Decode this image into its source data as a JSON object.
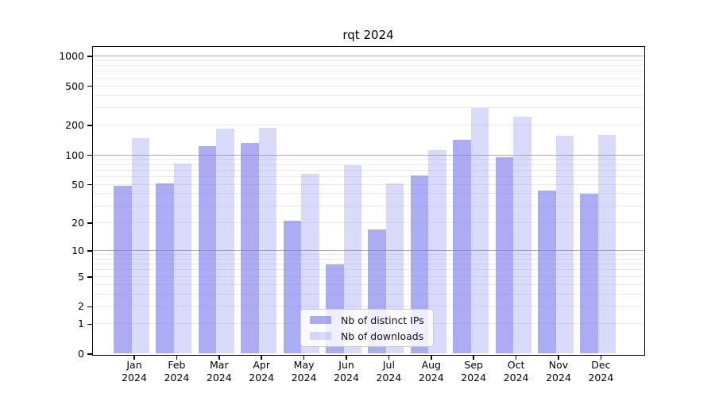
{
  "chart_data": {
    "type": "bar",
    "title": "rqt 2024",
    "xlabel": "",
    "ylabel": "",
    "y_scale": "log10(1+y)",
    "ylim": [
      0,
      1250
    ],
    "grid": true,
    "legend_position": "lower center",
    "categories": [
      "Jan",
      "Feb",
      "Mar",
      "Apr",
      "May",
      "Jun",
      "Jul",
      "Aug",
      "Sep",
      "Oct",
      "Nov",
      "Dec"
    ],
    "year": "2024",
    "series": [
      {
        "name": "Nb of distinct IPs",
        "color": "#7777ee",
        "alpha": 0.61,
        "values": [
          48,
          51,
          123,
          132,
          21,
          7,
          17,
          62,
          143,
          95,
          43,
          40
        ]
      },
      {
        "name": "Nb of downloads",
        "color": "#7777ee",
        "alpha": 0.27,
        "values": [
          149,
          81,
          184,
          188,
          64,
          79,
          51,
          112,
          301,
          246,
          155,
          158
        ]
      }
    ],
    "y_tick_labels": [
      "0",
      "1",
      "2",
      "5",
      "10",
      "20",
      "50",
      "100",
      "200",
      "500",
      "1000"
    ],
    "y_tick_values": [
      0,
      1,
      2,
      5,
      10,
      20,
      50,
      100,
      200,
      500,
      1000
    ],
    "y_major_gridlines": [
      10,
      100,
      1000
    ],
    "y_minor_gridlines": [
      1,
      2,
      3,
      4,
      5,
      6,
      7,
      8,
      9,
      20,
      30,
      40,
      50,
      60,
      70,
      80,
      90,
      200,
      300,
      400,
      500,
      600,
      700,
      800,
      900
    ]
  },
  "colors": {
    "background": "#ffffff",
    "axis": "#000000",
    "major_grid": "#adadad",
    "minor_grid": "#ebebeb",
    "bar_distinct_ips": "#abaaf2",
    "bar_downloads": "#dbdbf8"
  }
}
